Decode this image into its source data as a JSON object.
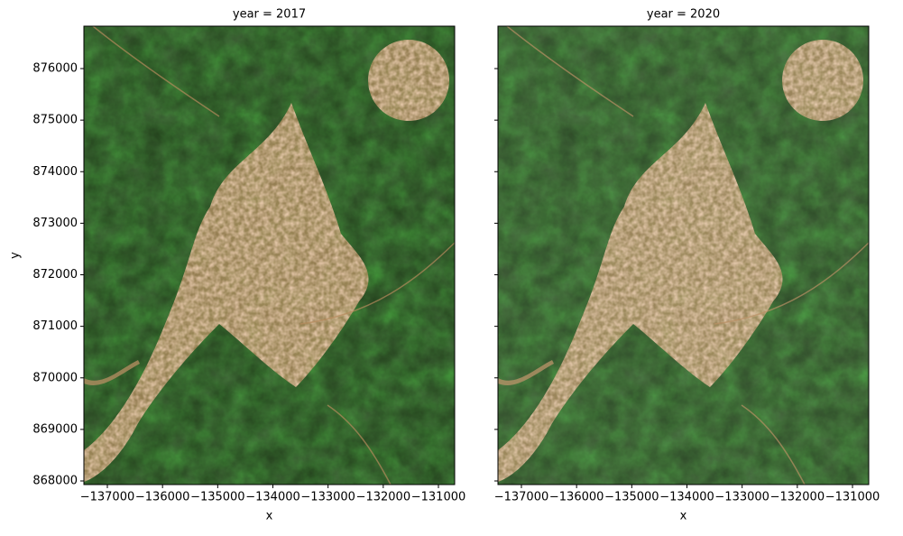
{
  "chart_data": [
    {
      "type": "image",
      "title": "year = 2017",
      "xlabel": "x",
      "ylabel": "y",
      "xlim": [
        -137425,
        -130706
      ],
      "ylim": [
        867930,
        876823
      ],
      "xticks": [
        {
          "value": -137000,
          "label": "−137000"
        },
        {
          "value": -136000,
          "label": "−136000"
        },
        {
          "value": -135000,
          "label": "−135000"
        },
        {
          "value": -134000,
          "label": "−134000"
        },
        {
          "value": -133000,
          "label": "−133000"
        },
        {
          "value": -132000,
          "label": "−132000"
        },
        {
          "value": -131000,
          "label": "−131000"
        }
      ],
      "yticks": [
        868000,
        869000,
        870000,
        871000,
        872000,
        873000,
        874000,
        875000,
        876000
      ]
    },
    {
      "type": "image",
      "title": "year = 2020",
      "xlabel": "x",
      "xlim": [
        -137425,
        -130706
      ],
      "ylim": [
        867930,
        876823
      ],
      "xticks": [
        {
          "value": -137000,
          "label": "−137000"
        },
        {
          "value": -136000,
          "label": "−136000"
        },
        {
          "value": -135000,
          "label": "−135000"
        },
        {
          "value": -134000,
          "label": "−134000"
        },
        {
          "value": -133000,
          "label": "−133000"
        },
        {
          "value": -132000,
          "label": "−132000"
        },
        {
          "value": -131000,
          "label": "−131000"
        }
      ],
      "yticks": [
        868000,
        869000,
        870000,
        871000,
        872000,
        873000,
        874000,
        875000,
        876000
      ]
    }
  ]
}
